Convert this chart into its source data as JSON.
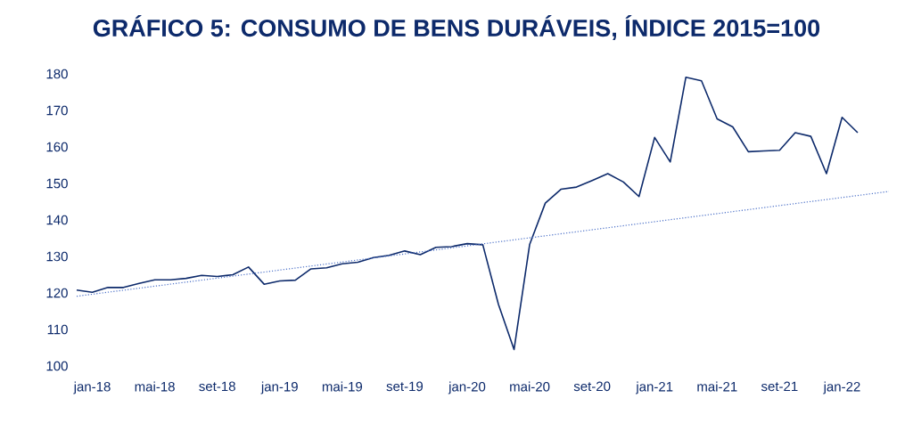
{
  "chart_data": {
    "type": "line",
    "title": "GRÁFICO 5: CONSUMO DE BENS DURÁVEIS, ÍNDICE 2015=100",
    "categories": [
      null,
      "jan-18",
      null,
      null,
      null,
      "mai-18",
      null,
      null,
      null,
      "set-18",
      null,
      null,
      null,
      "jan-19",
      null,
      null,
      null,
      "mai-19",
      null,
      null,
      null,
      "set-19",
      null,
      null,
      null,
      "jan-20",
      null,
      null,
      null,
      "mai-20",
      null,
      null,
      null,
      "set-20",
      null,
      null,
      null,
      "jan-21",
      null,
      null,
      null,
      "mai-21",
      null,
      null,
      null,
      "set-21",
      null,
      null,
      null,
      "jan-22",
      null,
      null,
      null
    ],
    "series": [
      {
        "color": "#0d2a6b",
        "values": [
          120.8,
          120.2,
          121.5,
          121.5,
          122.6,
          123.6,
          123.6,
          124.0,
          124.8,
          124.5,
          125.0,
          127.1,
          122.4,
          123.3,
          123.5,
          126.6,
          126.9,
          128.0,
          128.4,
          129.7,
          130.3,
          131.5,
          130.5,
          132.5,
          132.7,
          133.5,
          133.2,
          116.9,
          104.5,
          133.3,
          144.6,
          148.4,
          149.0,
          150.8,
          152.7,
          150.4,
          146.4,
          162.6,
          155.9,
          179.1,
          178.1,
          167.7,
          165.5,
          158.7,
          158.9,
          159.1,
          163.9,
          162.9,
          152.7,
          168.1,
          163.9,
          null,
          null
        ]
      },
      {
        "type": "line",
        "color": "#4a6fc7",
        "line_style": "dotted",
        "values": [
          119.1,
          null,
          null,
          null,
          null,
          null,
          null,
          null,
          null,
          null,
          null,
          null,
          null,
          null,
          null,
          null,
          null,
          null,
          null,
          null,
          null,
          null,
          null,
          null,
          null,
          null,
          null,
          null,
          null,
          null,
          null,
          null,
          null,
          null,
          null,
          null,
          null,
          null,
          null,
          null,
          null,
          null,
          null,
          null,
          null,
          null,
          null,
          null,
          null,
          null,
          null,
          null,
          147.8
        ]
      }
    ],
    "ylim": [
      100,
      180
    ],
    "yticks": [
      100,
      110,
      120,
      130,
      140,
      150,
      160,
      170,
      180
    ],
    "grid": false,
    "marker": "none",
    "line_style": "solid"
  }
}
